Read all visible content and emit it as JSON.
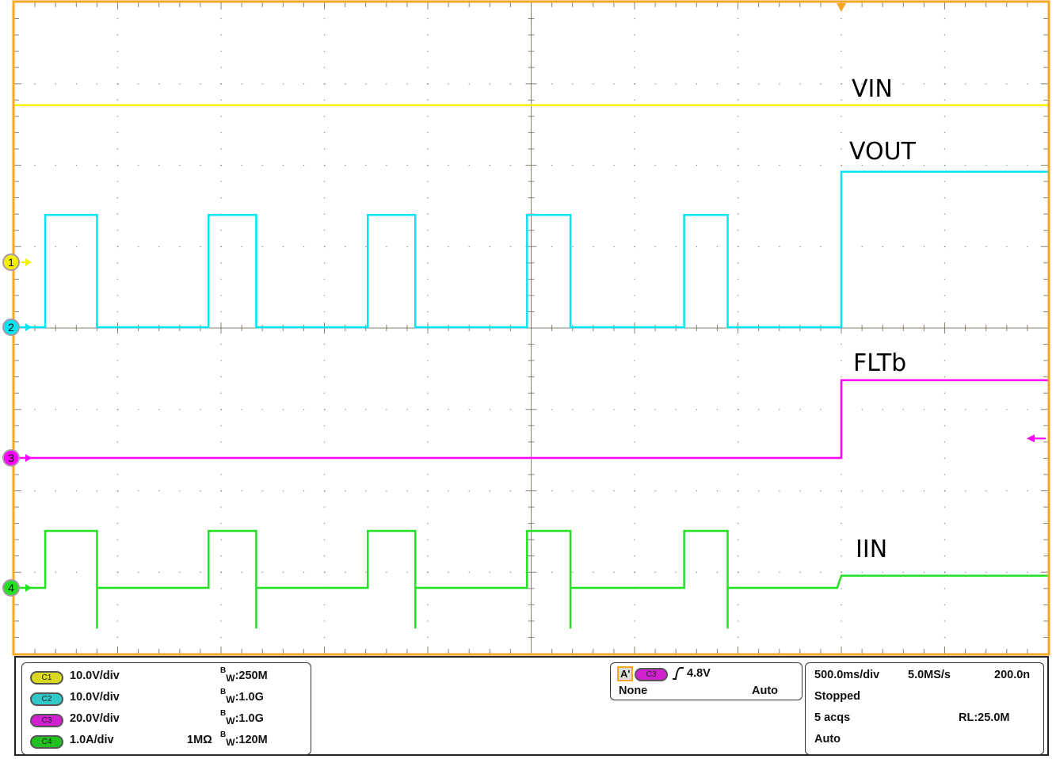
{
  "chart_data": {
    "type": "line",
    "xlabel": "",
    "ylabel": "",
    "time_per_div_s": 0.5,
    "xlim": [
      -4.0,
      1.0
    ],
    "grid": true,
    "trigger_time_s": 0,
    "series": [
      {
        "name": "VIN",
        "channel": 1,
        "unit": "V",
        "volts_per_div": 10.0,
        "color": "#f2f200",
        "points": [
          [
            -4.0,
            19.3
          ],
          [
            1.0,
            19.3
          ]
        ]
      },
      {
        "name": "VOUT",
        "channel": 2,
        "unit": "V",
        "volts_per_div": 10.0,
        "color": "#00e5f0",
        "points": [
          [
            -4.0,
            0
          ],
          [
            -3.85,
            0
          ],
          [
            -3.85,
            13.8
          ],
          [
            -3.6,
            13.8
          ],
          [
            -3.6,
            0
          ],
          [
            -3.06,
            0
          ],
          [
            -3.06,
            13.8
          ],
          [
            -2.83,
            13.8
          ],
          [
            -2.83,
            0
          ],
          [
            -2.29,
            0
          ],
          [
            -2.29,
            13.8
          ],
          [
            -2.06,
            13.8
          ],
          [
            -2.06,
            0
          ],
          [
            -1.52,
            0
          ],
          [
            -1.52,
            13.8
          ],
          [
            -1.31,
            13.8
          ],
          [
            -1.31,
            0
          ],
          [
            -0.76,
            0
          ],
          [
            -0.76,
            13.8
          ],
          [
            -0.55,
            13.8
          ],
          [
            -0.55,
            0
          ],
          [
            0,
            0
          ],
          [
            0,
            19.1
          ],
          [
            1.0,
            19.1
          ]
        ]
      },
      {
        "name": "FLTb",
        "channel": 3,
        "unit": "V",
        "volts_per_div": 20.0,
        "color": "#ff00ff",
        "points": [
          [
            -4.0,
            0
          ],
          [
            0,
            0
          ],
          [
            0,
            19.1
          ],
          [
            1.0,
            19.1
          ]
        ]
      },
      {
        "name": "IIN",
        "channel": 4,
        "unit": "A",
        "volts_per_div": 1.0,
        "color": "#22e022",
        "points": [
          [
            -4.0,
            0
          ],
          [
            -3.85,
            0
          ],
          [
            -3.85,
            0.7
          ],
          [
            -3.6,
            0.7
          ],
          [
            -3.6,
            -0.5
          ],
          [
            -3.6,
            0
          ],
          [
            -3.06,
            0
          ],
          [
            -3.06,
            0.7
          ],
          [
            -2.83,
            0.7
          ],
          [
            -2.83,
            -0.5
          ],
          [
            -2.83,
            0
          ],
          [
            -2.29,
            0
          ],
          [
            -2.29,
            0.7
          ],
          [
            -2.06,
            0.7
          ],
          [
            -2.06,
            -0.5
          ],
          [
            -2.06,
            0
          ],
          [
            -1.52,
            0
          ],
          [
            -1.52,
            0.7
          ],
          [
            -1.31,
            0.7
          ],
          [
            -1.31,
            -0.5
          ],
          [
            -1.31,
            0
          ],
          [
            -0.76,
            0
          ],
          [
            -0.76,
            0.7
          ],
          [
            -0.55,
            0.7
          ],
          [
            -0.55,
            -0.5
          ],
          [
            -0.55,
            0
          ],
          [
            -0.02,
            0
          ],
          [
            0,
            0.15
          ],
          [
            1.0,
            0.15
          ]
        ]
      }
    ],
    "trigger_level_v": 4.8
  },
  "colors": {
    "frame": "#f5a623",
    "grid": "#8a8070",
    "trigger": "#f5a623"
  },
  "channels": [
    {
      "pill": "C1",
      "scale": "10.0V/div",
      "term": "",
      "bw": "250M",
      "color": "#d8d820"
    },
    {
      "pill": "C2",
      "scale": "10.0V/div",
      "term": "",
      "bw": "1.0G",
      "color": "#30c8c8"
    },
    {
      "pill": "C3",
      "scale": "20.0V/div",
      "term": "",
      "bw": "1.0G",
      "color": "#d020d0"
    },
    {
      "pill": "C4",
      "scale": "1.0A/div",
      "term": "1MΩ",
      "bw": "120M",
      "color": "#20c020"
    }
  ],
  "bw_prefix": "B",
  "bw_sub": "W",
  "trigger": {
    "label": "A'",
    "source": "C3",
    "slope_icon": "rising-edge-icon",
    "level": "4.8V",
    "coupling": "None",
    "mode": "Auto"
  },
  "horizontal": {
    "scale": "500.0ms/div",
    "rate": "5.0MS/s",
    "resolution": "200.0n",
    "state": "Stopped",
    "acqs": "5 acqs",
    "record_length": "RL:25.0M",
    "mode": "Auto"
  },
  "channel_markers": [
    "1",
    "2",
    "3",
    "4"
  ]
}
